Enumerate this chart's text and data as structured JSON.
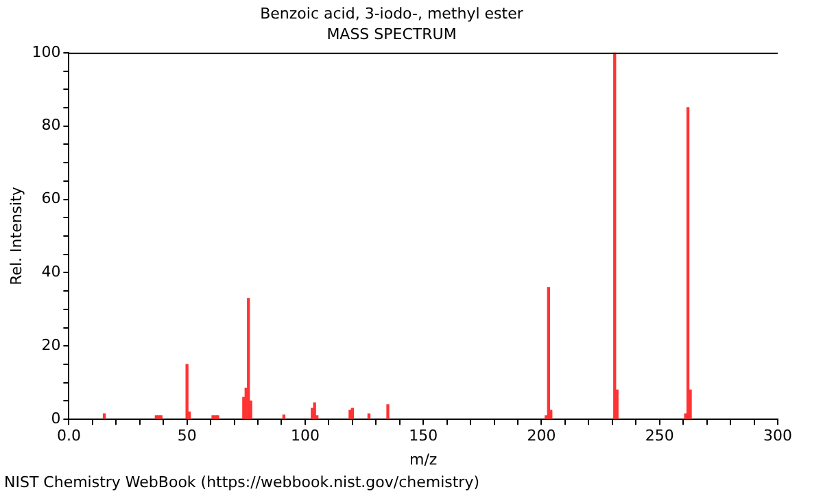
{
  "chart_data": {
    "type": "bar",
    "title": "Benzoic acid, 3-iodo-, methyl ester",
    "subtitle": "MASS SPECTRUM",
    "xlabel": "m/z",
    "ylabel": "Rel. Intensity",
    "x": [
      15,
      37,
      38,
      39,
      50,
      51,
      61,
      62,
      63,
      74,
      75,
      76,
      77,
      91,
      103,
      104,
      105,
      119,
      120,
      127,
      135,
      202,
      203,
      204,
      231,
      232,
      261,
      262,
      263
    ],
    "values": [
      1.5,
      1,
      1,
      1,
      15,
      2,
      1,
      1,
      1,
      6,
      8.5,
      33,
      5,
      1.2,
      3,
      4.5,
      1,
      2.5,
      3,
      1.5,
      4,
      1,
      36,
      2.5,
      100,
      8,
      1.5,
      85,
      8
    ],
    "color": "#ff3333",
    "xlim": [
      0,
      300
    ],
    "xticks": [
      {
        "value": 0,
        "label": "0.0"
      },
      {
        "value": 10,
        "label": null
      },
      {
        "value": 20,
        "label": null
      },
      {
        "value": 30,
        "label": null
      },
      {
        "value": 40,
        "label": null
      },
      50,
      {
        "value": 60,
        "label": null
      },
      {
        "value": 70,
        "label": null
      },
      {
        "value": 80,
        "label": null
      },
      {
        "value": 90,
        "label": null
      },
      100,
      {
        "value": 110,
        "label": null
      },
      {
        "value": 120,
        "label": null
      },
      {
        "value": 130,
        "label": null
      },
      {
        "value": 140,
        "label": null
      },
      150,
      {
        "value": 160,
        "label": null
      },
      {
        "value": 170,
        "label": null
      },
      {
        "value": 180,
        "label": null
      },
      {
        "value": 190,
        "label": null
      },
      200,
      {
        "value": 210,
        "label": null
      },
      {
        "value": 220,
        "label": null
      },
      {
        "value": 230,
        "label": null
      },
      {
        "value": 240,
        "label": null
      },
      250,
      {
        "value": 260,
        "label": null
      },
      {
        "value": 270,
        "label": null
      },
      {
        "value": 280,
        "label": null
      },
      {
        "value": 290,
        "label": null
      },
      300
    ],
    "ylim": [
      0,
      100
    ],
    "yticks": [
      0,
      {
        "value": 5,
        "label": null
      },
      {
        "value": 10,
        "label": null
      },
      {
        "value": 15,
        "label": null
      },
      20,
      {
        "value": 25,
        "label": null
      },
      {
        "value": 30,
        "label": null
      },
      {
        "value": 35,
        "label": null
      },
      40,
      {
        "value": 45,
        "label": null
      },
      {
        "value": 50,
        "label": null
      },
      {
        "value": 55,
        "label": null
      },
      60,
      {
        "value": 65,
        "label": null
      },
      {
        "value": 70,
        "label": null
      },
      {
        "value": 75,
        "label": null
      },
      80,
      {
        "value": 85,
        "label": null
      },
      {
        "value": 90,
        "label": null
      },
      {
        "value": 95,
        "label": null
      },
      100
    ],
    "grid": false,
    "annotations": [
      "NIST Chemistry WebBook (https://webbook.nist.gov/chemistry)"
    ]
  }
}
